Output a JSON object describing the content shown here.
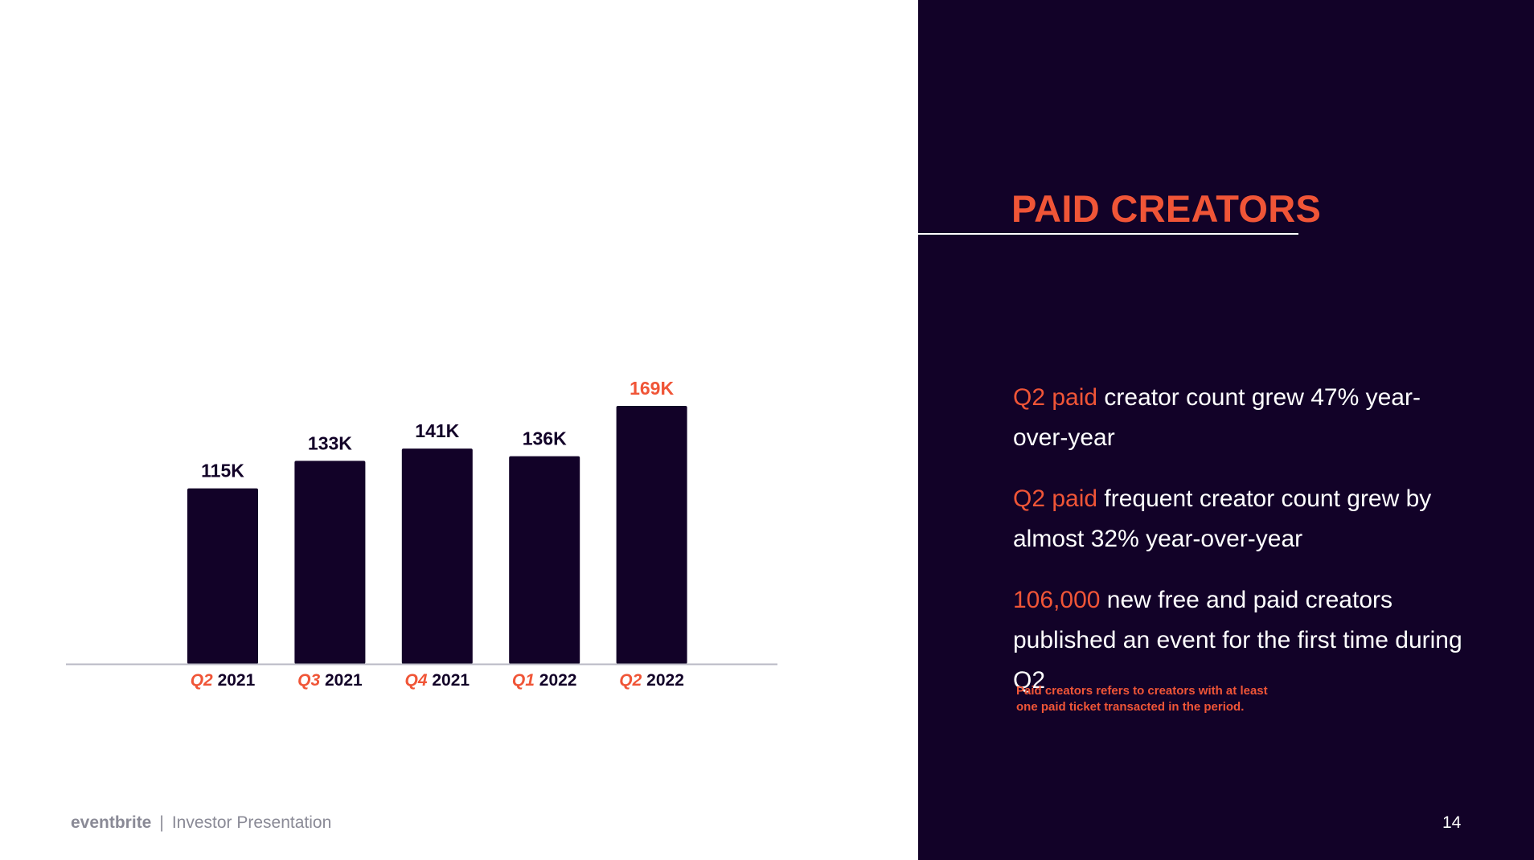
{
  "header": {
    "title": "PAID CREATORS"
  },
  "bullets": [
    {
      "highlight": "Q2 paid",
      "text": " creator count grew 47% year-over-year"
    },
    {
      "highlight": "Q2 paid",
      "text": " frequent creator count grew by almost 32% year-over-year"
    },
    {
      "highlight": "106,000",
      "text": " new free and paid creators published an event for the first time during Q2"
    }
  ],
  "footnote": "Paid creators refers to creators with at least one paid ticket transacted in the period.",
  "footer": {
    "brand": "eventbrite",
    "separator": "|",
    "text": "Investor Presentation",
    "page_number": "14"
  },
  "colors": {
    "accent": "#f05537",
    "dark": "#120228",
    "axis": "#b9b9c4",
    "footer_gray": "#8a8a96"
  },
  "chart_data": {
    "type": "bar",
    "categories": [
      {
        "quarter": "Q2",
        "year": "2021"
      },
      {
        "quarter": "Q3",
        "year": "2021"
      },
      {
        "quarter": "Q4",
        "year": "2021"
      },
      {
        "quarter": "Q1",
        "year": "2022"
      },
      {
        "quarter": "Q2",
        "year": "2022"
      }
    ],
    "values": [
      115,
      133,
      141,
      136,
      169
    ],
    "value_labels": [
      "115K",
      "133K",
      "141K",
      "136K",
      "169K"
    ],
    "highlight_index": 4,
    "units": "thousands",
    "ylim": [
      0,
      180
    ],
    "grid": false,
    "legend": false
  }
}
